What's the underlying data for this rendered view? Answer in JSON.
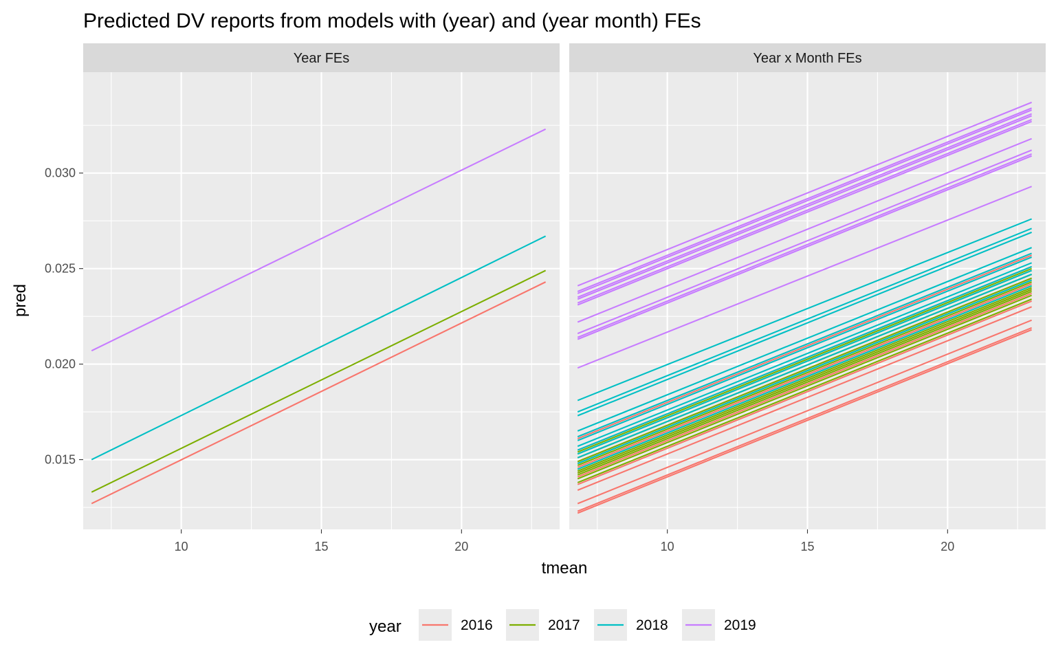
{
  "chart_data": {
    "type": "line",
    "title": "Predicted DV reports from models with (year) and (year month) FEs",
    "xlabel": "tmean",
    "ylabel": "pred",
    "xlim": [
      6.5,
      23.5
    ],
    "ylim": [
      0.01135,
      0.03528
    ],
    "x_ticks": [
      10,
      15,
      20
    ],
    "y_ticks": [
      0.015,
      0.02,
      0.025,
      0.03
    ],
    "y_tick_labels": [
      "0.015",
      "0.020",
      "0.025",
      "0.030"
    ],
    "grid": true,
    "legend": {
      "title": "year",
      "position": "bottom",
      "entries": [
        {
          "label": "2016",
          "color": "#F8766D"
        },
        {
          "label": "2017",
          "color": "#7CAE00"
        },
        {
          "label": "2018",
          "color": "#00BFC4"
        },
        {
          "label": "2019",
          "color": "#C77CFF"
        }
      ]
    },
    "x_range": [
      6.8,
      23.0
    ],
    "panels": [
      {
        "strip": "Year FEs",
        "series": [
          {
            "name": "2016",
            "color": "#F8766D",
            "lines": [
              [
                0.0127,
                0.0243
              ]
            ]
          },
          {
            "name": "2017",
            "color": "#7CAE00",
            "lines": [
              [
                0.0133,
                0.0249
              ]
            ]
          },
          {
            "name": "2018",
            "color": "#00BFC4",
            "lines": [
              [
                0.015,
                0.0267
              ]
            ]
          },
          {
            "name": "2019",
            "color": "#C77CFF",
            "lines": [
              [
                0.0207,
                0.0323
              ]
            ]
          }
        ]
      },
      {
        "strip": "Year x Month FEs",
        "series": [
          {
            "name": "2016",
            "color": "#F8766D",
            "lines": [
              [
                0.0122,
                0.0218
              ],
              [
                0.0123,
                0.0219
              ],
              [
                0.0127,
                0.0223
              ],
              [
                0.0134,
                0.023
              ],
              [
                0.0137,
                0.0233
              ],
              [
                0.0141,
                0.0237
              ],
              [
                0.0143,
                0.0239
              ],
              [
                0.0146,
                0.0242
              ],
              [
                0.0149,
                0.0245
              ],
              [
                0.0151,
                0.0247
              ],
              [
                0.0155,
                0.0251
              ],
              [
                0.0161,
                0.0257
              ]
            ]
          },
          {
            "name": "2017",
            "color": "#7CAE00",
            "lines": [
              [
                0.0138,
                0.0234
              ],
              [
                0.014,
                0.0236
              ],
              [
                0.0142,
                0.0238
              ],
              [
                0.0143,
                0.0239
              ],
              [
                0.0144,
                0.024
              ],
              [
                0.0145,
                0.0241
              ],
              [
                0.0147,
                0.0243
              ],
              [
                0.0149,
                0.0245
              ],
              [
                0.0151,
                0.0247
              ],
              [
                0.0153,
                0.0249
              ],
              [
                0.0154,
                0.025
              ],
              [
                0.0148,
                0.0244
              ]
            ]
          },
          {
            "name": "2018",
            "color": "#00BFC4",
            "lines": [
              [
                0.0145,
                0.0241
              ],
              [
                0.0148,
                0.0244
              ],
              [
                0.0151,
                0.0247
              ],
              [
                0.0153,
                0.0249
              ],
              [
                0.0155,
                0.0251
              ],
              [
                0.0157,
                0.0253
              ],
              [
                0.016,
                0.0256
              ],
              [
                0.0165,
                0.0261
              ],
              [
                0.0173,
                0.0269
              ],
              [
                0.0175,
                0.0271
              ],
              [
                0.0181,
                0.0276
              ],
              [
                0.0162,
                0.0258
              ]
            ]
          },
          {
            "name": "2019",
            "color": "#C77CFF",
            "lines": [
              [
                0.0198,
                0.0293
              ],
              [
                0.0213,
                0.0309
              ],
              [
                0.0214,
                0.031
              ],
              [
                0.0216,
                0.0312
              ],
              [
                0.0222,
                0.0318
              ],
              [
                0.0231,
                0.0327
              ],
              [
                0.0232,
                0.0328
              ],
              [
                0.0234,
                0.033
              ],
              [
                0.0235,
                0.0331
              ],
              [
                0.0237,
                0.0333
              ],
              [
                0.0238,
                0.0334
              ],
              [
                0.0241,
                0.0337
              ]
            ]
          }
        ]
      }
    ]
  }
}
